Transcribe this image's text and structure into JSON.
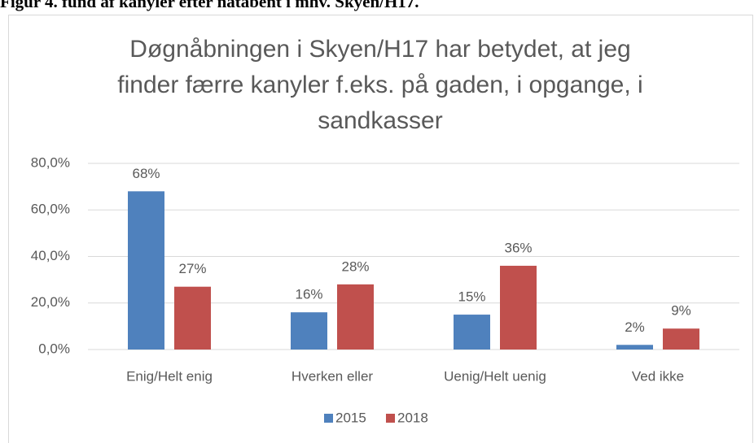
{
  "caption": "Figur 4. fund af kanyler efter natåbent i mhv. Skyen/H17.",
  "chart_data": {
    "type": "bar",
    "title": [
      "Døgnåbningen i Skyen/H17 har betydet, at jeg",
      "finder færre kanyler f.eks. på gaden, i opgange, i",
      "sandkasser"
    ],
    "categories": [
      "Enig/Helt enig",
      "Hverken eller",
      "Uenig/Helt uenig",
      "Ved ikke"
    ],
    "series": [
      {
        "name": "2015",
        "color": "#4f81bd",
        "values": [
          68,
          16,
          15,
          2
        ],
        "value_labels": [
          "68%",
          "16%",
          "15%",
          "2%"
        ]
      },
      {
        "name": "2018",
        "color": "#c0504d",
        "values": [
          27,
          28,
          36,
          9
        ],
        "value_labels": [
          "27%",
          "28%",
          "36%",
          "9%"
        ]
      }
    ],
    "ylim": [
      0,
      80
    ],
    "yticks": [
      {
        "value": 0,
        "label": "0,0%"
      },
      {
        "value": 20,
        "label": "20,0%"
      },
      {
        "value": 40,
        "label": "40,0%"
      },
      {
        "value": 60,
        "label": "60,0%"
      },
      {
        "value": 80,
        "label": "80,0%"
      }
    ],
    "grid": true,
    "legend": "bottom"
  }
}
